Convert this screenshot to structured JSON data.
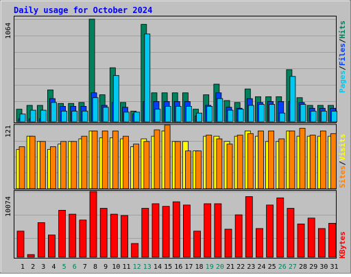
{
  "title": "Daily usage for October 2024",
  "colors": {
    "background": "#c0c0c0",
    "title": "#0000ff",
    "hits": "#00805c",
    "files": "#0040ff",
    "pages": "#00c8f0",
    "visits": "#ffff00",
    "sites": "#ff8000",
    "kbytes": "#ff0000",
    "gridline": "#a0a0a0",
    "weekend_label": "#00805c"
  },
  "chart_data": [
    {
      "type": "bar",
      "name": "hits-files-pages",
      "y_max_label": "1064",
      "legend": [
        "Pages",
        "/",
        "Files",
        "/",
        "Hits"
      ],
      "series": [
        {
          "name": "Hits",
          "values": [
            130,
            170,
            170,
            330,
            190,
            190,
            200,
            1064,
            280,
            560,
            200,
            110,
            1010,
            300,
            300,
            300,
            300,
            130,
            280,
            390,
            220,
            200,
            340,
            260,
            260,
            260,
            540,
            250,
            170,
            170,
            170
          ]
        },
        {
          "name": "Files",
          "values": [
            30,
            30,
            30,
            240,
            160,
            160,
            160,
            300,
            170,
            200,
            150,
            80,
            210,
            210,
            210,
            210,
            210,
            60,
            170,
            300,
            150,
            140,
            240,
            200,
            210,
            210,
            210,
            200,
            140,
            140,
            140
          ]
        },
        {
          "name": "Pages",
          "values": [
            80,
            120,
            120,
            200,
            110,
            110,
            110,
            250,
            150,
            480,
            100,
            100,
            910,
            130,
            160,
            160,
            160,
            90,
            160,
            240,
            120,
            130,
            170,
            180,
            180,
            90,
            470,
            180,
            110,
            110,
            110
          ]
        }
      ]
    },
    {
      "type": "bar",
      "name": "visits-sites",
      "y_max_label": "121",
      "legend": [
        "Sites",
        "/",
        "Visits"
      ],
      "series": [
        {
          "name": "Visits",
          "values": [
            75,
            100,
            90,
            75,
            85,
            90,
            95,
            110,
            97,
            97,
            95,
            80,
            95,
            100,
            110,
            90,
            90,
            72,
            100,
            100,
            90,
            100,
            110,
            100,
            90,
            90,
            110,
            100,
            100,
            100,
            100
          ]
        },
        {
          "name": "Sites",
          "values": [
            80,
            100,
            90,
            80,
            90,
            90,
            100,
            110,
            110,
            110,
            100,
            85,
            90,
            112,
            121,
            90,
            72,
            72,
            102,
            95,
            85,
            102,
            105,
            110,
            110,
            95,
            110,
            115,
            102,
            110,
            105
          ]
        }
      ]
    },
    {
      "type": "bar",
      "name": "kbytes",
      "y_max_label": "10074",
      "legend": [
        "KBytes"
      ],
      "series": [
        {
          "name": "KBytes",
          "values": [
            4000,
            400,
            5300,
            3400,
            7200,
            6600,
            5700,
            10074,
            7500,
            6600,
            6400,
            2100,
            7500,
            8200,
            7800,
            8500,
            8000,
            4000,
            8200,
            8200,
            4300,
            6500,
            9300,
            4400,
            8000,
            9100,
            7500,
            5100,
            6000,
            4400,
            5200
          ]
        }
      ]
    }
  ],
  "x_labels": [
    "1",
    "2",
    "3",
    "4",
    "5",
    "6",
    "7",
    "8",
    "9",
    "10",
    "11",
    "12",
    "13",
    "14",
    "15",
    "16",
    "17",
    "18",
    "19",
    "20",
    "21",
    "22",
    "23",
    "24",
    "25",
    "26",
    "27",
    "28",
    "29",
    "30",
    "31"
  ],
  "weekend_days": [
    "5",
    "6",
    "12",
    "13",
    "19",
    "20",
    "26",
    "27"
  ]
}
